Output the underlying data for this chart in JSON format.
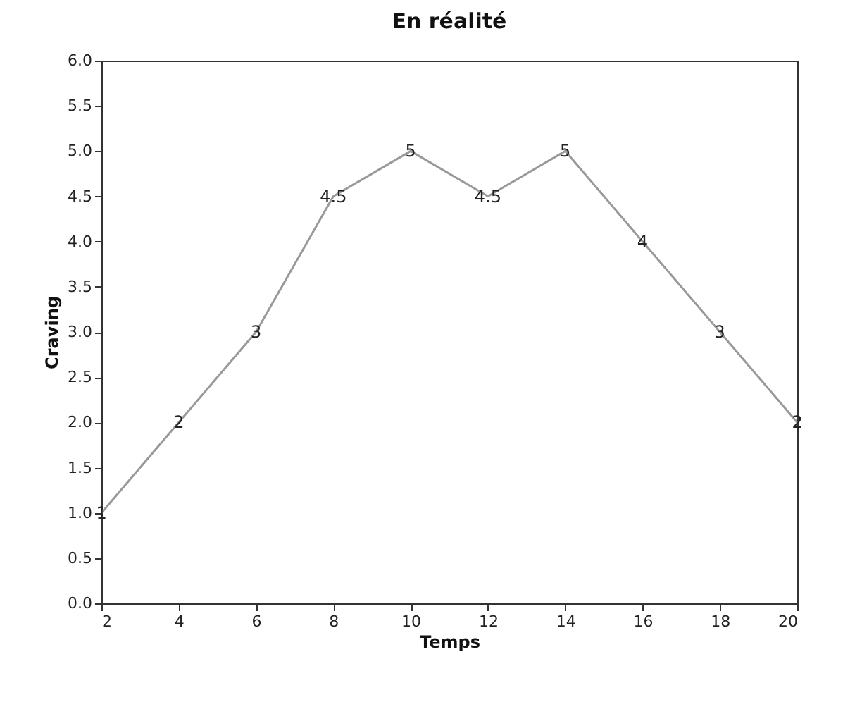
{
  "chart_data": {
    "type": "line",
    "title": "En réalité",
    "xlabel": "Temps",
    "ylabel": "Craving",
    "x": [
      2,
      4,
      6,
      8,
      10,
      12,
      14,
      16,
      18,
      20
    ],
    "series": [
      {
        "color": "#999999",
        "values": [
          1,
          2,
          3,
          4.5,
          5,
          4.5,
          5,
          4,
          3,
          2
        ]
      }
    ],
    "xlim": [
      2,
      20
    ],
    "xticks": [
      2,
      4,
      6,
      8,
      10,
      12,
      14,
      16,
      18,
      20
    ],
    "ylim": [
      0,
      6
    ],
    "yticks": [
      {
        "value": 0,
        "label": "0.0"
      },
      {
        "value": 0.5,
        "label": "0.5"
      },
      {
        "value": 1,
        "label": "1.0"
      },
      {
        "value": 1.5,
        "label": "1.5"
      },
      {
        "value": 2,
        "label": "2.0"
      },
      {
        "value": 2.5,
        "label": "2.5"
      },
      {
        "value": 3,
        "label": "3.0"
      },
      {
        "value": 3.5,
        "label": "3.5"
      },
      {
        "value": 4,
        "label": "4.0"
      },
      {
        "value": 4.5,
        "label": "4.5"
      },
      {
        "value": 5,
        "label": "5.0"
      },
      {
        "value": 5.5,
        "label": "5.5"
      },
      {
        "value": 6,
        "label": "6.0"
      }
    ],
    "grid": false,
    "marker": "none",
    "line_style": "solid",
    "data_labels": true
  }
}
